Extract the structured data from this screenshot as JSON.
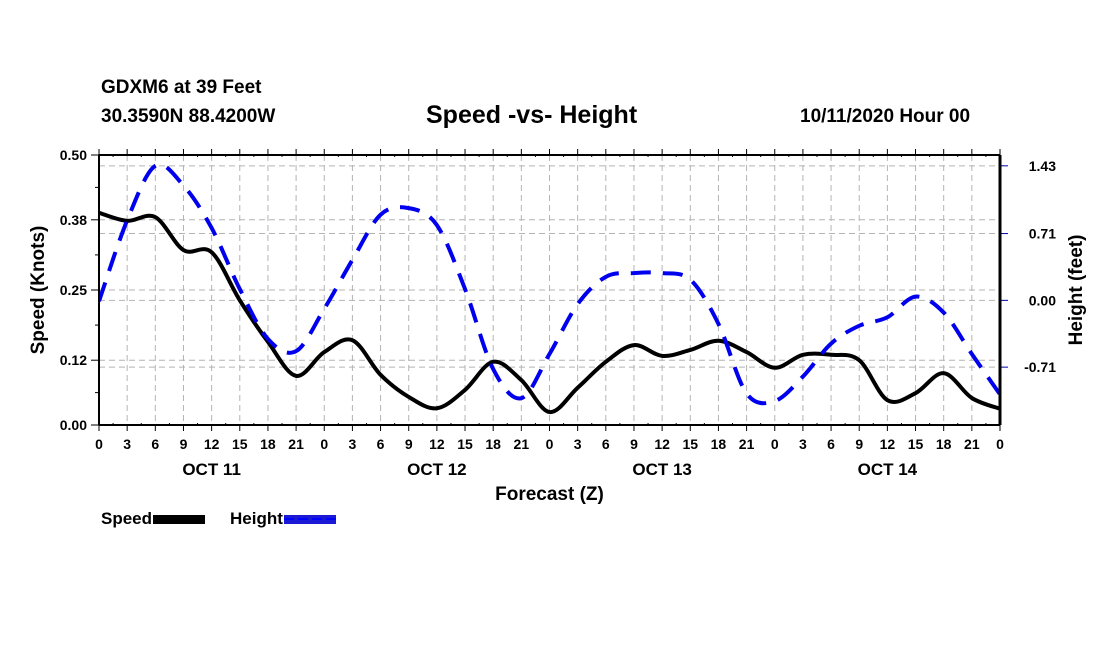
{
  "header": {
    "station": "GDXM6 at 39 Feet",
    "coords": "30.3590N 88.4200W",
    "title": "Speed -vs- Height",
    "datetime": "10/11/2020 Hour 00"
  },
  "legend": {
    "speed_label": "Speed",
    "height_label": "Height"
  },
  "chart_data": {
    "type": "line",
    "title": "Speed -vs- Height",
    "xlabel": "Forecast (Z)",
    "ylabel": "Speed (Knots)",
    "y2label": "Height (feet)",
    "xlim": [
      0,
      96
    ],
    "ylim": [
      0,
      0.5
    ],
    "y2lim": [
      -1.325,
      1.545
    ],
    "grid": true,
    "legend_position": "bottom-left",
    "x_tick_labels": [
      "0",
      "3",
      "6",
      "9",
      "12",
      "15",
      "18",
      "21",
      "0",
      "3",
      "6",
      "9",
      "12",
      "15",
      "18",
      "21",
      "0",
      "3",
      "6",
      "9",
      "12",
      "15",
      "18",
      "21",
      "0",
      "3",
      "6",
      "9",
      "12",
      "15",
      "18",
      "21",
      "0"
    ],
    "day_labels": [
      {
        "label": "OCT 11",
        "hour": 12
      },
      {
        "label": "OCT 12",
        "hour": 36
      },
      {
        "label": "OCT 13",
        "hour": 60
      },
      {
        "label": "OCT 14",
        "hour": 84
      }
    ],
    "y_ticks": [
      0.0,
      0.12,
      0.25,
      0.38,
      0.5
    ],
    "y_tick_labels": [
      "0.00",
      "0.12",
      "0.25",
      "0.38",
      "0.50"
    ],
    "y2_ticks": [
      -0.71,
      0.0,
      0.71,
      1.43
    ],
    "y2_tick_labels": [
      "-0.71",
      "0.00",
      "0.71",
      "1.43"
    ],
    "x": [
      0,
      3,
      6,
      9,
      12,
      15,
      18,
      21,
      24,
      27,
      30,
      33,
      36,
      39,
      42,
      45,
      48,
      51,
      54,
      57,
      60,
      63,
      66,
      69,
      72,
      75,
      78,
      81,
      84,
      87,
      90,
      93,
      96
    ],
    "series": [
      {
        "name": "Speed",
        "axis": "left",
        "color": "#000000",
        "style": "solid",
        "values": [
          0.393,
          0.378,
          0.385,
          0.324,
          0.32,
          0.231,
          0.154,
          0.091,
          0.135,
          0.157,
          0.093,
          0.052,
          0.031,
          0.065,
          0.117,
          0.083,
          0.024,
          0.069,
          0.117,
          0.148,
          0.128,
          0.139,
          0.156,
          0.135,
          0.106,
          0.13,
          0.13,
          0.12,
          0.046,
          0.059,
          0.096,
          0.05,
          0.03
        ]
      },
      {
        "name": "Height",
        "axis": "right",
        "color": "#0000ee",
        "style": "dashed",
        "values": [
          -0.01,
          0.85,
          1.43,
          1.22,
          0.77,
          0.12,
          -0.41,
          -0.54,
          -0.09,
          0.43,
          0.91,
          0.98,
          0.8,
          0.12,
          -0.73,
          -1.04,
          -0.57,
          -0.04,
          0.25,
          0.29,
          0.29,
          0.22,
          -0.25,
          -0.99,
          -1.07,
          -0.81,
          -0.46,
          -0.27,
          -0.18,
          0.04,
          -0.13,
          -0.57,
          -1.0
        ]
      }
    ]
  }
}
